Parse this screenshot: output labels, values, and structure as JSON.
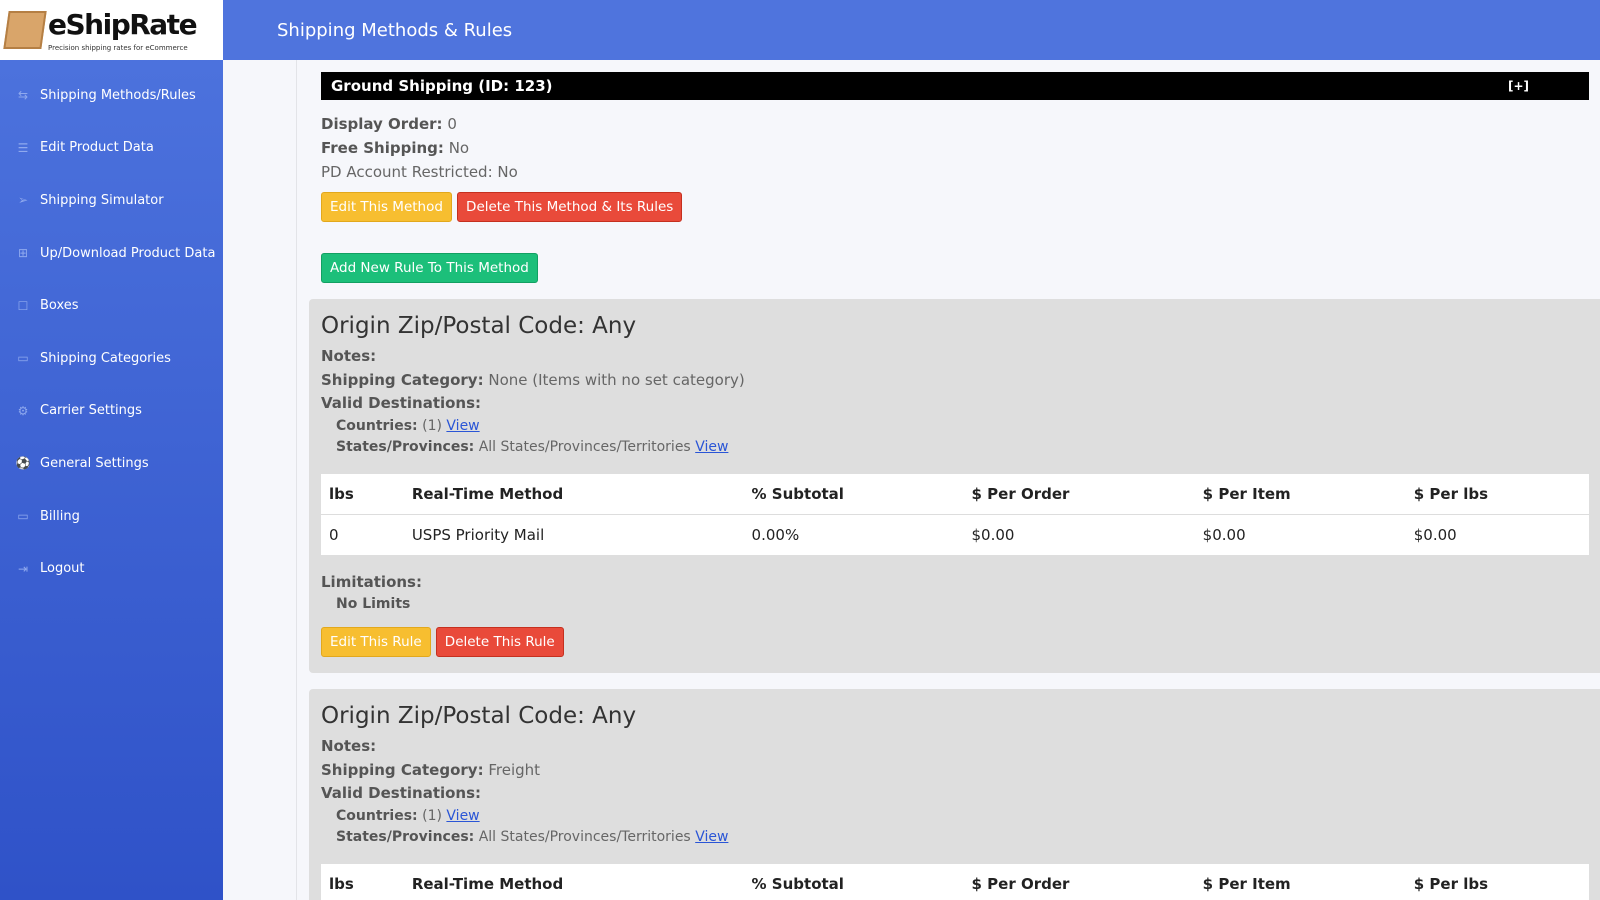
{
  "logo": {
    "name": "eShipRate",
    "tagline": "Precision shipping rates for eCommerce"
  },
  "header": {
    "title": "Shipping Methods & Rules"
  },
  "sidebar": {
    "items": [
      {
        "label": "Shipping Methods/Rules",
        "icon": "⇆"
      },
      {
        "label": "Edit Product Data",
        "icon": "☰"
      },
      {
        "label": "Shipping Simulator",
        "icon": "➢"
      },
      {
        "label": "Up/Download Product Data",
        "icon": "⊞"
      },
      {
        "label": "Boxes",
        "icon": "☐"
      },
      {
        "label": "Shipping Categories",
        "icon": "▭"
      },
      {
        "label": "Carrier Settings",
        "icon": "⚙"
      },
      {
        "label": "General Settings",
        "icon": "⚽"
      },
      {
        "label": "Billing",
        "icon": "▭"
      },
      {
        "label": "Logout",
        "icon": "⇥"
      }
    ]
  },
  "method": {
    "title": "Ground Shipping (ID: 123)",
    "expand": "[+]",
    "display_order_label": "Display Order:",
    "display_order": "0",
    "free_shipping_label": "Free Shipping:",
    "free_shipping": "No",
    "pd_restricted": "PD Account Restricted: No",
    "edit": "Edit This Method",
    "delete": "Delete This Method & Its Rules",
    "add_rule": "Add New Rule To This Method"
  },
  "table_headers": [
    "lbs",
    "Real-Time Method",
    "% Subtotal",
    "$ Per Order",
    "$ Per Item",
    "$ Per lbs"
  ],
  "rules": [
    {
      "title": "Origin Zip/Postal Code: Any",
      "notes_label": "Notes:",
      "category_label": "Shipping Category:",
      "category": "None (Items with no set category)",
      "dest_label": "Valid Destinations:",
      "countries_label": "Countries:",
      "countries": "(1)",
      "view": "View",
      "states_label": "States/Provinces:",
      "states": "All States/Provinces/Territories",
      "row": [
        "0",
        "USPS Priority Mail",
        "0.00%",
        "$0.00",
        "$0.00",
        "$0.00"
      ],
      "limitations_label": "Limitations:",
      "limits": "No Limits",
      "edit": "Edit This Rule",
      "delete": "Delete This Rule"
    },
    {
      "title": "Origin Zip/Postal Code: Any",
      "notes_label": "Notes:",
      "category_label": "Shipping Category:",
      "category": "Freight",
      "dest_label": "Valid Destinations:",
      "countries_label": "Countries:",
      "countries": "(1)",
      "view": "View",
      "states_label": "States/Provinces:",
      "states": "All States/Provinces/Territories"
    }
  ]
}
